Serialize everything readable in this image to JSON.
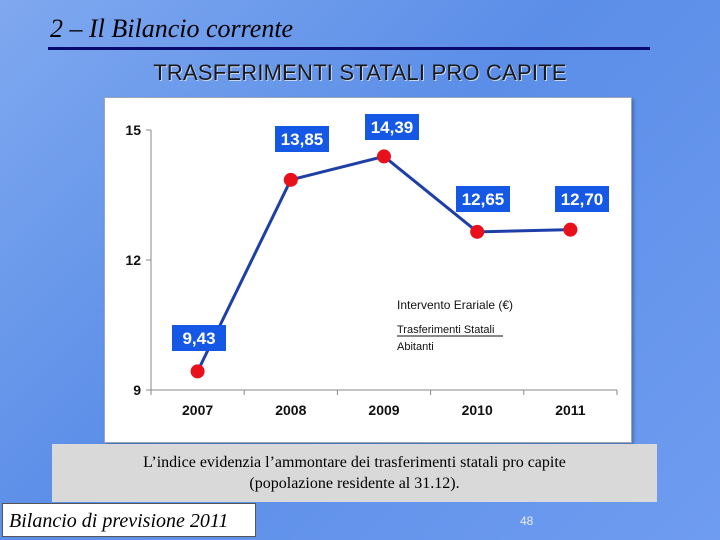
{
  "slide": {
    "heading": "2 – Il Bilancio corrente",
    "caption_line1": "L’indice evidenzia l’ammontare dei trasferimenti statali pro capite",
    "caption_line2": "(popolazione residente al 31.12).",
    "footer": "Bilancio di previsione 2011",
    "page_number": "48"
  },
  "colors": {
    "line": "#1f3fa8",
    "marker": "#e8101a",
    "label_box": "#1558e6",
    "label_text": "#ffffff"
  },
  "chart_data": {
    "type": "line",
    "title": "TRASFERIMENTI STATALI PRO CAPITE",
    "categories": [
      "2007",
      "2008",
      "2009",
      "2010",
      "2011"
    ],
    "values": [
      9.43,
      13.85,
      14.39,
      12.65,
      12.7
    ],
    "data_labels": [
      "9,43",
      "13,85",
      "14,39",
      "12,65",
      "12,70"
    ],
    "y_ticks": [
      "9",
      "12",
      "15"
    ],
    "ylim": [
      9,
      15
    ],
    "grid": false,
    "annotation": {
      "header": "Intervento Erariale  (€)",
      "numerator": "Trasferimenti Statali",
      "denominator": "Abitanti"
    }
  }
}
